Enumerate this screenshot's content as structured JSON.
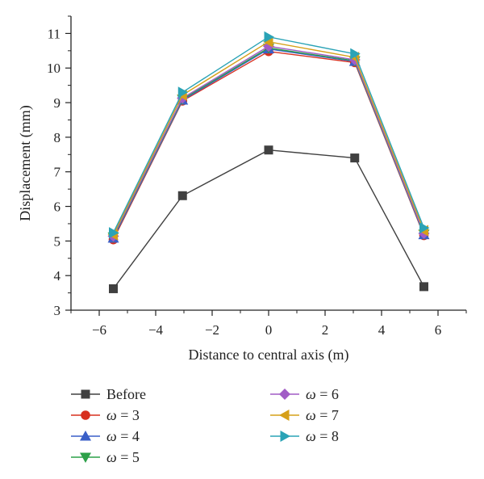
{
  "chart_data": {
    "type": "line",
    "xlabel": "Distance to central axis (m)",
    "ylabel": "Displacement (mm)",
    "xlim": [
      -7,
      7
    ],
    "ylim": [
      3,
      11.5
    ],
    "xticks": [
      -6,
      -4,
      -2,
      0,
      2,
      4,
      6
    ],
    "xtick_labels": [
      "−6",
      "−4",
      "−2",
      "0",
      "2",
      "4",
      "6"
    ],
    "yticks": [
      3,
      4,
      5,
      6,
      7,
      8,
      9,
      10,
      11
    ],
    "ytick_labels": [
      "3",
      "4",
      "5",
      "6",
      "7",
      "8",
      "9",
      "10",
      "11"
    ],
    "x": [
      -5.5,
      -3.05,
      0,
      3.05,
      5.5
    ],
    "series": [
      {
        "name": "Before",
        "symbol": "ω",
        "label_rest": "",
        "color": "#404040",
        "marker": "square",
        "values": [
          3.62,
          6.31,
          7.63,
          7.4,
          3.68
        ]
      },
      {
        "name": "ω = 3",
        "symbol": "ω",
        "label_rest": " = 3",
        "color": "#d7301f",
        "marker": "circle",
        "values": [
          5.04,
          9.05,
          10.48,
          10.16,
          5.16
        ]
      },
      {
        "name": "ω = 4",
        "symbol": "ω",
        "label_rest": " = 4",
        "color": "#3a5fc8",
        "marker": "triangle-up",
        "values": [
          5.08,
          9.07,
          10.55,
          10.19,
          5.18
        ]
      },
      {
        "name": "ω = 5",
        "symbol": "ω",
        "label_rest": " = 5",
        "color": "#2ca048",
        "marker": "triangle-down",
        "values": [
          5.12,
          9.1,
          10.58,
          10.21,
          5.2
        ]
      },
      {
        "name": "ω = 6",
        "symbol": "ω",
        "label_rest": " = 6",
        "color": "#a15cc6",
        "marker": "diamond",
        "values": [
          5.14,
          9.13,
          10.63,
          10.24,
          5.22
        ]
      },
      {
        "name": "ω = 7",
        "symbol": "ω",
        "label_rest": " = 7",
        "color": "#d6a019",
        "marker": "triangle-left",
        "values": [
          5.18,
          9.22,
          10.76,
          10.31,
          5.3
        ]
      },
      {
        "name": "ω = 8",
        "symbol": "ω",
        "label_rest": " = 8",
        "color": "#2aa3b6",
        "marker": "triangle-right",
        "values": [
          5.24,
          9.3,
          10.9,
          10.41,
          5.38
        ]
      }
    ],
    "legend_placement": "bottom",
    "grid": false
  }
}
